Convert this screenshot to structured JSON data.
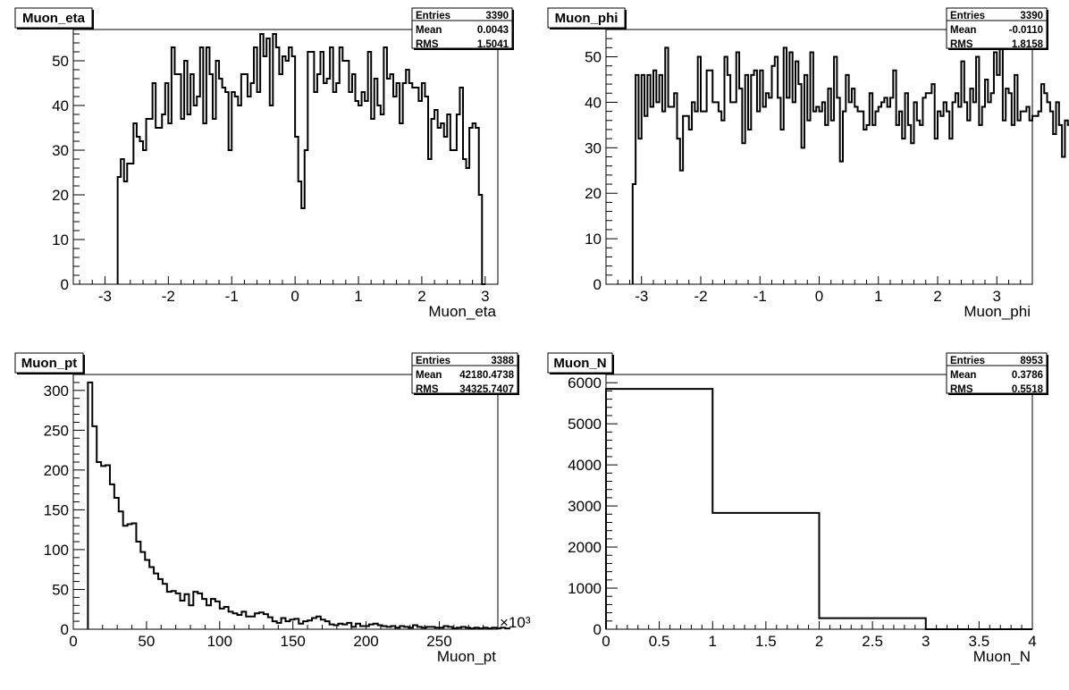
{
  "chart_data": [
    {
      "type": "histogram",
      "title": "Muon_eta",
      "xlabel": "Muon_eta",
      "ylabel": "",
      "xlim": [
        -3.5,
        3.2
      ],
      "ylim": [
        0,
        57
      ],
      "xticks": [
        -3,
        -2,
        -1,
        0,
        1,
        2,
        3
      ],
      "yticks": [
        0,
        10,
        20,
        30,
        40,
        50
      ],
      "exponent_label": "",
      "bins": {
        "start": -2.8,
        "width": 0.05
      },
      "values": [
        24,
        28,
        23,
        27,
        27,
        36,
        33,
        32,
        30,
        37,
        37,
        45,
        35,
        35,
        38,
        45,
        36,
        53,
        47,
        47,
        37,
        50,
        38,
        47,
        40,
        42,
        53,
        36,
        53,
        47,
        37,
        50,
        46,
        44,
        43,
        30,
        43,
        42,
        40,
        47,
        47,
        42,
        45,
        53,
        43,
        56,
        51,
        55,
        40,
        56,
        53,
        47,
        51,
        50,
        53,
        51,
        33,
        23,
        17,
        30,
        52,
        52,
        43,
        47,
        52,
        45,
        46,
        53,
        43,
        45,
        53,
        50,
        50,
        43,
        47,
        41,
        40,
        43,
        41,
        52,
        37,
        46,
        40,
        38,
        53,
        46,
        47,
        42,
        45,
        36,
        45,
        48,
        45,
        44,
        44,
        41,
        45,
        42,
        28,
        37,
        39,
        35,
        36,
        33,
        38,
        30,
        30,
        38,
        44,
        28,
        26,
        35,
        36,
        35,
        20,
        0
      ],
      "stats": [
        [
          "Entries",
          "3390"
        ],
        [
          "Mean",
          "0.0043"
        ],
        [
          "RMS",
          "1.5041"
        ]
      ]
    },
    {
      "type": "histogram",
      "title": "Muon_phi",
      "xlabel": "Muon_phi",
      "ylabel": "",
      "xlim": [
        -3.6,
        3.6
      ],
      "ylim": [
        0,
        56
      ],
      "xticks": [
        -3,
        -2,
        -1,
        0,
        1,
        2,
        3
      ],
      "yticks": [
        0,
        10,
        20,
        30,
        40,
        50
      ],
      "exponent_label": "",
      "bins": {
        "start": -3.15,
        "width": 0.05
      },
      "values": [
        22,
        46,
        32,
        46,
        37,
        46,
        39,
        47,
        40,
        46,
        38,
        52,
        39,
        39,
        42,
        32,
        25,
        37,
        37,
        34,
        40,
        38,
        50,
        38,
        38,
        47,
        47,
        40,
        40,
        38,
        36,
        50,
        46,
        40,
        40,
        51,
        43,
        31,
        46,
        34,
        46,
        47,
        38,
        47,
        39,
        42,
        41,
        48,
        50,
        41,
        34,
        52,
        41,
        51,
        40,
        49,
        44,
        30,
        46,
        36,
        51,
        38,
        39,
        38,
        40,
        35,
        43,
        36,
        50,
        41,
        27,
        38,
        46,
        40,
        43,
        39,
        38,
        38,
        34,
        35,
        42,
        35,
        38,
        39,
        40,
        41,
        39,
        41,
        47,
        35,
        38,
        32,
        42,
        35,
        31,
        40,
        36,
        35,
        41,
        42,
        42,
        44,
        32,
        38,
        37,
        40,
        38,
        32,
        40,
        42,
        39,
        49,
        40,
        36,
        43,
        40,
        50,
        35,
        39,
        45,
        40,
        42,
        51,
        46,
        52,
        36,
        43,
        42,
        35,
        46,
        36,
        38,
        38,
        39,
        36,
        37,
        37,
        38,
        44,
        42,
        40,
        38,
        33,
        40,
        35,
        28,
        36,
        35,
        37,
        17,
        0
      ],
      "stats": [
        [
          "Entries",
          "3390"
        ],
        [
          "Mean",
          "-0.0110"
        ],
        [
          "RMS",
          "1.8158"
        ]
      ]
    },
    {
      "type": "histogram",
      "title": "Muon_pt",
      "xlabel": "Muon_pt",
      "ylabel": "",
      "xlim": [
        0,
        290
      ],
      "ylim": [
        0,
        320
      ],
      "xticks": [
        0,
        50,
        100,
        150,
        200,
        250
      ],
      "yticks": [
        0,
        50,
        100,
        150,
        200,
        250,
        300
      ],
      "exponent_label": "×10³",
      "bins": {
        "start": 10,
        "width": 3
      },
      "values": [
        310,
        255,
        210,
        205,
        206,
        182,
        165,
        148,
        130,
        132,
        133,
        110,
        97,
        87,
        78,
        70,
        63,
        57,
        47,
        48,
        45,
        36,
        44,
        30,
        47,
        45,
        38,
        30,
        38,
        35,
        26,
        28,
        22,
        20,
        18,
        22,
        16,
        16,
        20,
        21,
        19,
        15,
        10,
        8,
        14,
        10,
        12,
        13,
        7,
        10,
        11,
        14,
        16,
        12,
        10,
        6,
        5,
        7,
        6,
        8,
        3,
        7,
        4,
        4,
        6,
        7,
        5,
        4,
        3,
        4,
        2,
        4,
        3,
        2,
        5,
        3,
        2,
        3,
        3,
        2,
        2,
        4,
        3,
        1,
        2,
        3,
        2,
        1,
        2,
        1,
        2,
        1,
        2,
        1,
        2,
        1
      ],
      "stats": [
        [
          "Entries",
          "3388"
        ],
        [
          "Mean",
          "42180.4738"
        ],
        [
          "RMS",
          "34325.7407"
        ]
      ]
    },
    {
      "type": "histogram",
      "title": "Muon_N",
      "xlabel": "Muon_N",
      "ylabel": "",
      "xlim": [
        0,
        4
      ],
      "ylim": [
        0,
        6200
      ],
      "xticks": [
        0,
        0.5,
        1,
        1.5,
        2,
        2.5,
        3,
        3.5,
        4
      ],
      "yticks": [
        0,
        1000,
        2000,
        3000,
        4000,
        5000,
        6000
      ],
      "exponent_label": "",
      "bins": {
        "start": 0,
        "width": 1
      },
      "values": [
        5850,
        2830,
        270,
        0
      ],
      "stats": [
        [
          "Entries",
          "8953"
        ],
        [
          "Mean",
          "0.3786"
        ],
        [
          "RMS",
          "0.5518"
        ]
      ]
    }
  ]
}
